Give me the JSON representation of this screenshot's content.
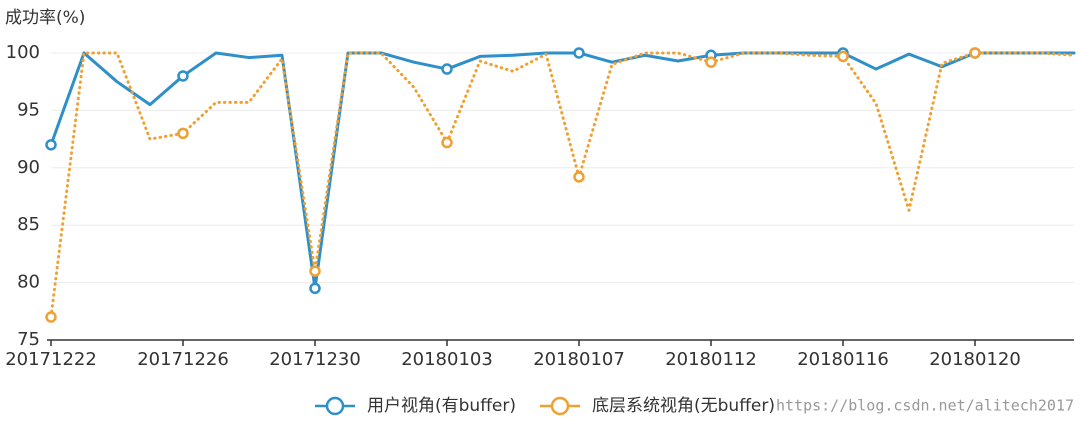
{
  "chart_data": {
    "type": "line",
    "y_label": "成功率(%)",
    "categories": [
      "20171222",
      null,
      null,
      null,
      "20171226",
      null,
      null,
      null,
      "20171230",
      null,
      null,
      null,
      "20180103",
      null,
      null,
      null,
      "20180107",
      null,
      null,
      null,
      "20180112",
      null,
      null,
      null,
      "20180116",
      null,
      null,
      null,
      "20180120",
      null,
      null,
      null
    ],
    "series": [
      {
        "name": "用户视角(有buffer)",
        "color": "#2e8fc9",
        "style": "solid",
        "values": [
          92,
          100,
          97.5,
          95.5,
          98,
          100,
          99.6,
          99.8,
          79.5,
          100,
          100,
          99.2,
          98.6,
          99.7,
          99.8,
          100,
          100,
          99.2,
          99.8,
          99.3,
          99.8,
          100,
          100,
          100,
          100,
          98.6,
          99.9,
          98.8,
          100,
          100,
          100,
          100
        ]
      },
      {
        "name": "底层系统视角(无buffer)",
        "color": "#f0a030",
        "style": "dotted",
        "values": [
          77,
          100,
          100,
          92.5,
          93,
          95.7,
          95.7,
          99.5,
          81,
          100,
          100,
          97,
          92.2,
          99.3,
          98.4,
          99.9,
          89.2,
          99,
          100,
          100,
          99.2,
          100,
          100,
          99.8,
          99.7,
          95.6,
          86.3,
          99.1,
          100,
          100,
          100,
          99.8
        ]
      }
    ],
    "ylim": [
      75,
      101
    ],
    "yticks": [
      75,
      80,
      85,
      90,
      95,
      100
    ],
    "grid": true,
    "legend": "bottom",
    "watermark": "https://blog.csdn.net/alitech2017"
  }
}
